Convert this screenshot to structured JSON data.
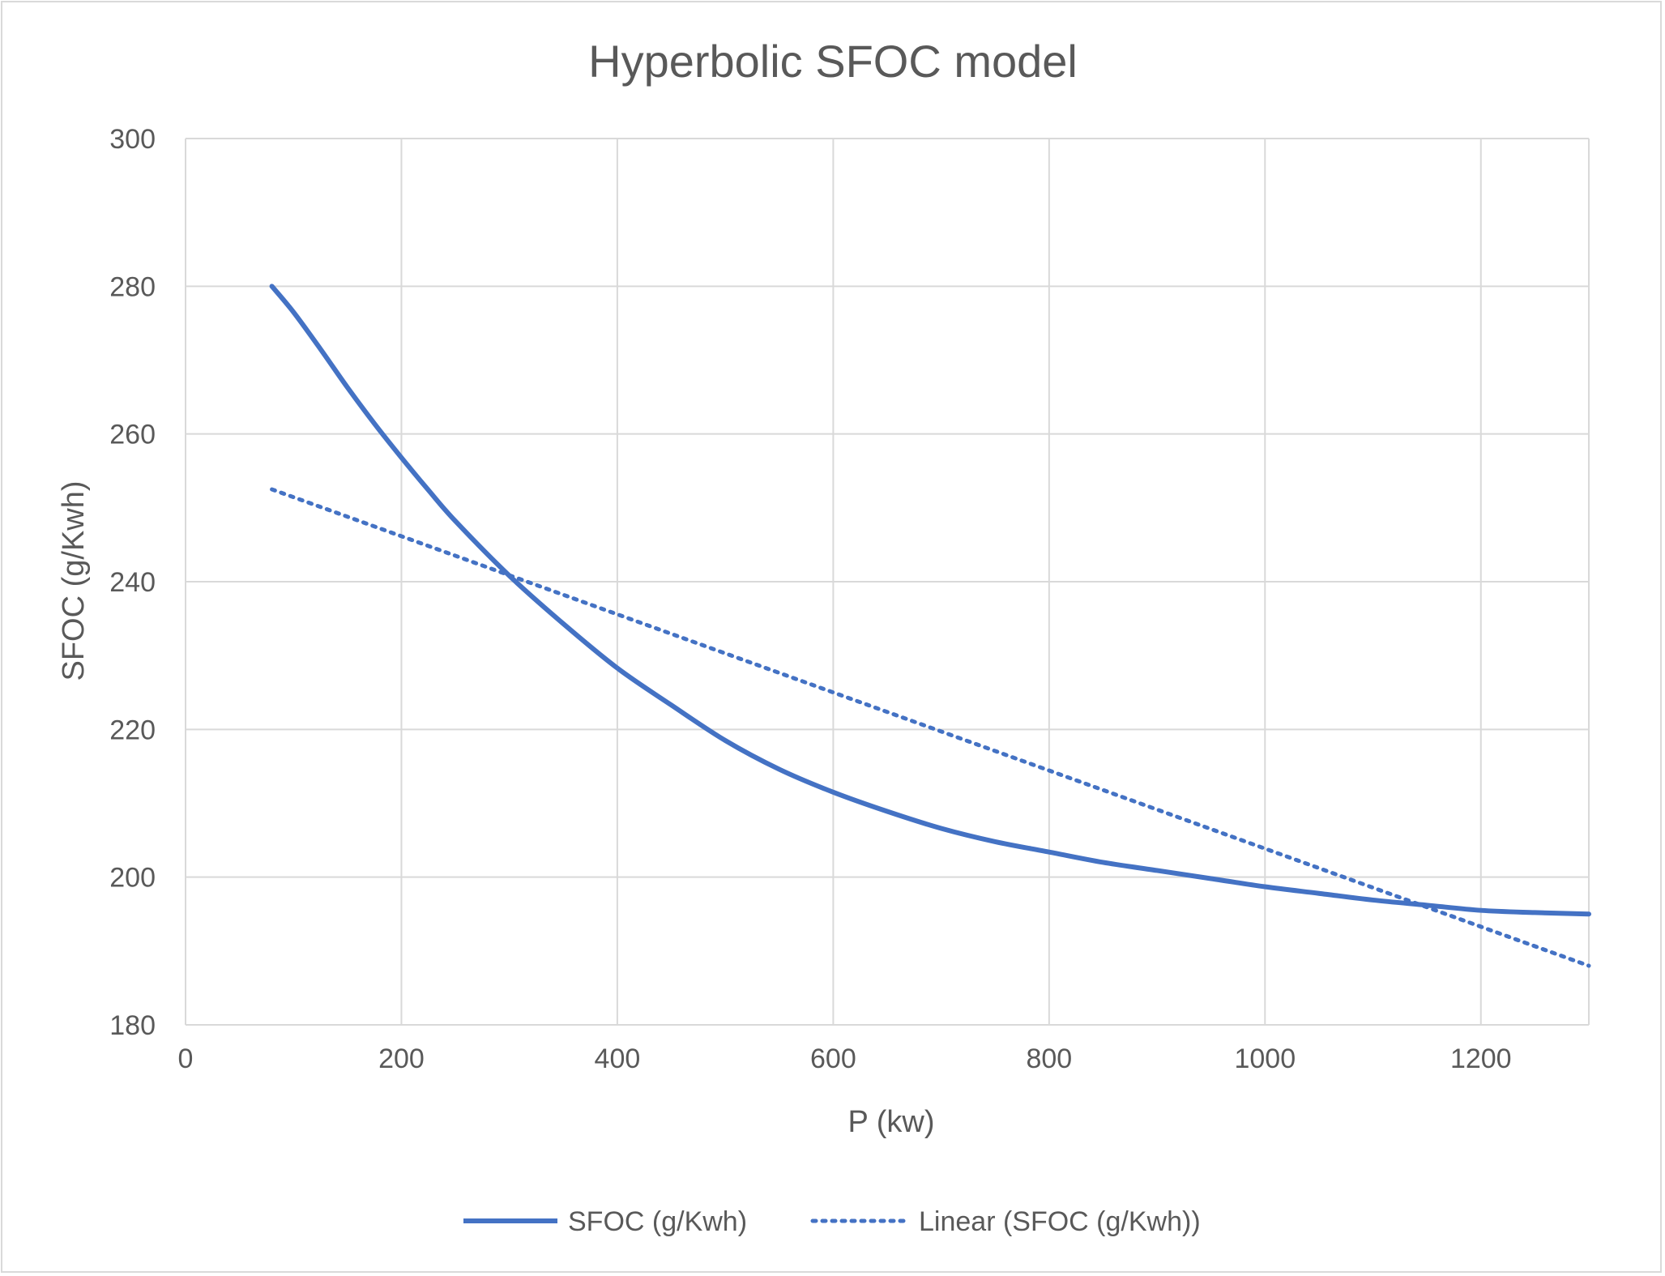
{
  "chart_data": {
    "type": "line",
    "title": "Hyperbolic SFOC model",
    "xlabel": "P (kw)",
    "ylabel": "SFOC (g/Kwh)",
    "xlim": [
      0,
      1300
    ],
    "ylim": [
      180,
      300
    ],
    "x_ticks": [
      0,
      200,
      400,
      600,
      800,
      1000,
      1200
    ],
    "y_ticks": [
      180,
      200,
      220,
      240,
      260,
      280,
      300
    ],
    "grid": true,
    "legend_position": "bottom",
    "series": [
      {
        "name": "SFOC (g/Kwh)",
        "style": "solid",
        "color": "#4472c4",
        "x": [
          80,
          100,
          125,
          150,
          175,
          200,
          225,
          250,
          300,
          350,
          400,
          450,
          500,
          550,
          600,
          650,
          700,
          750,
          800,
          850,
          900,
          950,
          1000,
          1050,
          1100,
          1150,
          1200,
          1250,
          1300
        ],
        "y": [
          280,
          276.5,
          271.5,
          266.3,
          261.4,
          256.8,
          252.4,
          248.2,
          240.8,
          234.3,
          228.3,
          223.3,
          218.5,
          214.6,
          211.5,
          208.9,
          206.6,
          204.8,
          203.4,
          202.0,
          200.9,
          199.8,
          198.7,
          197.8,
          196.9,
          196.2,
          195.5,
          195.2,
          195.0
        ]
      },
      {
        "name": "Linear (SFOC (g/Kwh))",
        "style": "dotted",
        "color": "#4472c4",
        "x": [
          80,
          1300
        ],
        "y": [
          252.5,
          188
        ]
      }
    ]
  }
}
